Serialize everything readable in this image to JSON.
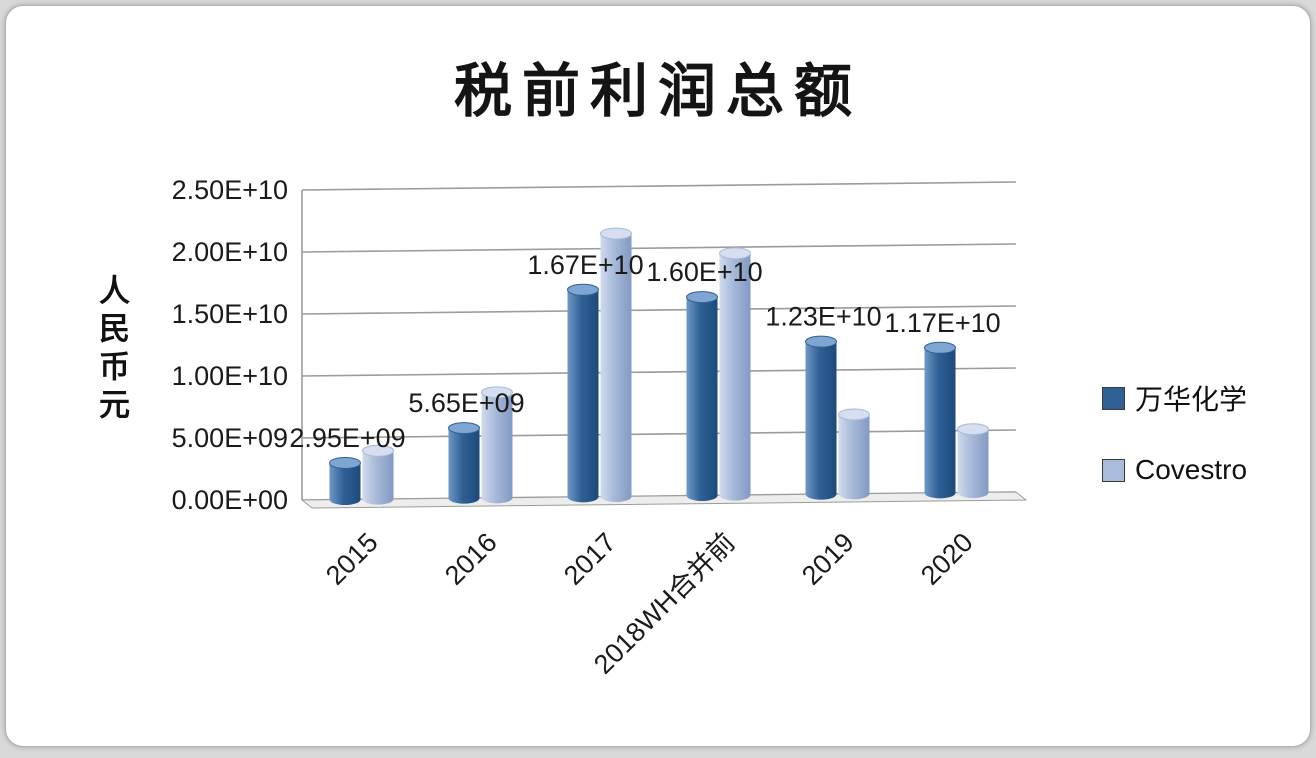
{
  "chart_data": {
    "type": "bar",
    "subtype": "3d-cylinder",
    "title": "税前利润总额",
    "ylabel": "人民币元",
    "categories": [
      "2015",
      "2016",
      "2017",
      "2018WH合并前",
      "2019",
      "2020"
    ],
    "series": [
      {
        "name": "万华化学",
        "values": [
          2950000000.0,
          5650000000.0,
          16700000000.0,
          16000000000.0,
          12300000000.0,
          11700000000.0
        ],
        "data_labels": [
          "2.95E+09",
          "5.65E+09",
          "1.67E+10",
          "1.60E+10",
          "1.23E+10",
          "1.17E+10"
        ],
        "color_swatch": "#2e5f95",
        "gradient": [
          "#6f98c6",
          "#2f6096",
          "#1d4a7a"
        ],
        "top_color": "#7fa6d2"
      },
      {
        "name": "Covestro",
        "values": [
          3900000000.0,
          8500000000.0,
          21200000000.0,
          19500000000.0,
          6400000000.0,
          5100000000.0
        ],
        "data_labels": [],
        "color_swatch": "#a9bbdb",
        "gradient": [
          "#d0daec",
          "#a6b9d9",
          "#8399c2"
        ],
        "top_color": "#d6deef"
      }
    ],
    "ylim": [
      0,
      25000000000.0
    ],
    "yticks": [
      "0.00E+00",
      "5.00E+09",
      "1.00E+10",
      "1.50E+10",
      "2.00E+10",
      "2.50E+10"
    ],
    "legend_position": "right",
    "grid": true
  },
  "colors": {
    "gridline": "#9b9b9b",
    "axis": "#9b9b9b",
    "label_text": "#1a1a1a",
    "floor_fill": "#ededed"
  }
}
